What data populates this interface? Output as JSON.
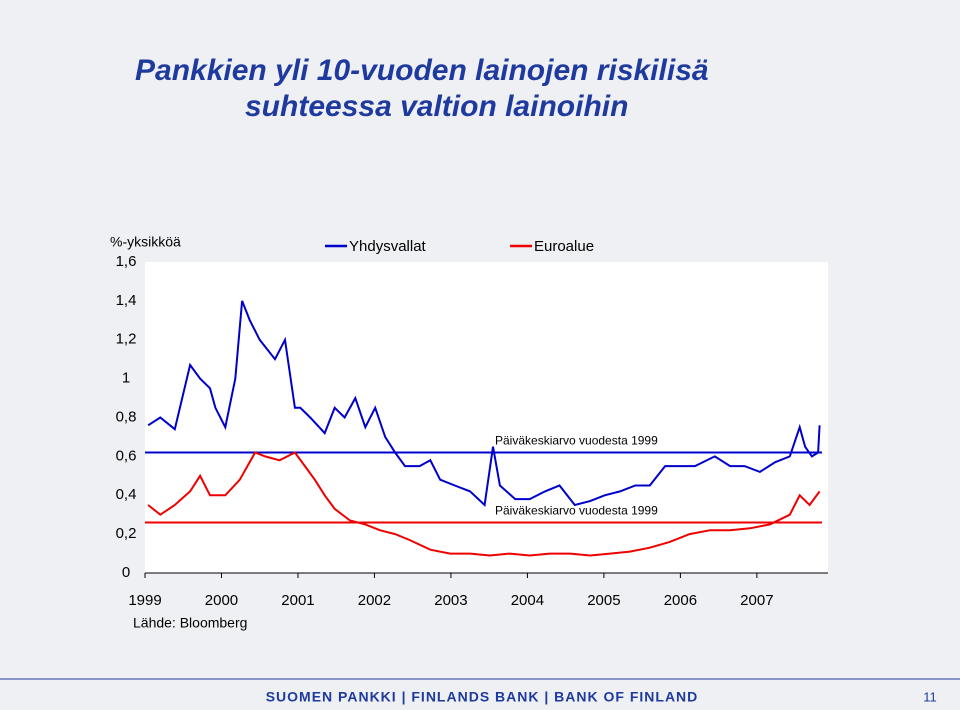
{
  "chart_data": {
    "type": "line",
    "title": "Pankkien yli 10-vuoden lainojen riskilisä",
    "subtitle": "suhteessa valtion lainoihin",
    "y_label": "%-yksikköä",
    "source": "Lähde: Bloomberg",
    "footer": "SUOMEN PANKKI | FINLANDS BANK | BANK OF FINLAND",
    "page_number": "11",
    "xlim": [
      1999,
      2007.93
    ],
    "xticks": [
      1999,
      2000,
      2001,
      2002,
      2003,
      2004,
      2005,
      2006,
      2007
    ],
    "ylim": [
      0,
      1.6
    ],
    "yticks": [
      0,
      {
        "value": 0.2,
        "label": "0,2"
      },
      {
        "value": 0.4,
        "label": "0,4"
      },
      {
        "value": 0.6,
        "label": "0,6"
      },
      {
        "value": 0.8,
        "label": "0,8"
      },
      1,
      {
        "value": 1.2,
        "label": "1,2"
      },
      {
        "value": 1.4,
        "label": "1,4"
      },
      {
        "value": 1.6,
        "label": "1,6"
      }
    ],
    "series": [
      {
        "name": "Yhdysvallat",
        "color": "#0000cc",
        "x": [
          1999.04,
          1999.2,
          1999.39,
          1999.59,
          1999.72,
          1999.85,
          1999.92,
          2000.05,
          2000.18,
          2000.27,
          2000.37,
          2000.5,
          2000.7,
          2000.83,
          2000.96,
          2001.03,
          2001.16,
          2001.35,
          2001.48,
          2001.61,
          2001.75,
          2001.88,
          2002.01,
          2002.14,
          2002.27,
          2002.4,
          2002.59,
          2002.73,
          2002.86,
          2003.05,
          2003.25,
          2003.44,
          2003.55,
          2003.64,
          2003.84,
          2004.03,
          2004.23,
          2004.42,
          2004.62,
          2004.82,
          2005.01,
          2005.21,
          2005.41,
          2005.6,
          2005.8,
          2005.99,
          2006.19,
          2006.45,
          2006.65,
          2006.84,
          2007.04,
          2007.24,
          2007.43,
          2007.56,
          2007.63,
          2007.72,
          2007.8,
          2007.82
        ],
        "values": [
          0.76,
          0.8,
          0.74,
          1.07,
          1.0,
          0.95,
          0.85,
          0.75,
          1.0,
          1.4,
          1.3,
          1.2,
          1.1,
          1.2,
          0.85,
          0.85,
          0.8,
          0.72,
          0.85,
          0.8,
          0.9,
          0.75,
          0.85,
          0.7,
          0.62,
          0.55,
          0.55,
          0.58,
          0.48,
          0.45,
          0.42,
          0.35,
          0.65,
          0.45,
          0.38,
          0.38,
          0.42,
          0.45,
          0.35,
          0.37,
          0.4,
          0.42,
          0.45,
          0.45,
          0.55,
          0.55,
          0.55,
          0.6,
          0.55,
          0.55,
          0.52,
          0.57,
          0.6,
          0.75,
          0.65,
          0.6,
          0.62,
          0.76
        ]
      },
      {
        "name": "Euroalue",
        "color": "#ee0000",
        "x": [
          1999.04,
          1999.2,
          1999.39,
          1999.59,
          1999.72,
          1999.85,
          2000.05,
          2000.24,
          2000.44,
          2000.57,
          2000.76,
          2000.96,
          2001.09,
          2001.22,
          2001.35,
          2001.48,
          2001.68,
          2001.88,
          2002.07,
          2002.27,
          2002.46,
          2002.73,
          2002.99,
          2003.25,
          2003.51,
          2003.77,
          2004.03,
          2004.29,
          2004.56,
          2004.82,
          2005.08,
          2005.34,
          2005.6,
          2005.86,
          2006.12,
          2006.39,
          2006.65,
          2006.91,
          2007.17,
          2007.43,
          2007.56,
          2007.69,
          2007.82
        ],
        "values": [
          0.35,
          0.3,
          0.35,
          0.42,
          0.5,
          0.4,
          0.4,
          0.48,
          0.62,
          0.6,
          0.58,
          0.62,
          0.55,
          0.48,
          0.4,
          0.33,
          0.27,
          0.25,
          0.22,
          0.2,
          0.17,
          0.12,
          0.1,
          0.1,
          0.09,
          0.1,
          0.09,
          0.1,
          0.1,
          0.09,
          0.1,
          0.11,
          0.13,
          0.16,
          0.2,
          0.22,
          0.22,
          0.23,
          0.25,
          0.3,
          0.4,
          0.35,
          0.42
        ]
      }
    ],
    "reference_lines": [
      {
        "value": 0.62,
        "color": "#0000cc",
        "label": "Päiväkeskiarvo vuodesta 1999"
      },
      {
        "value": 0.26,
        "color": "#ee0000",
        "label": "Päiväkeskiarvo vuodesta 1999"
      }
    ]
  }
}
